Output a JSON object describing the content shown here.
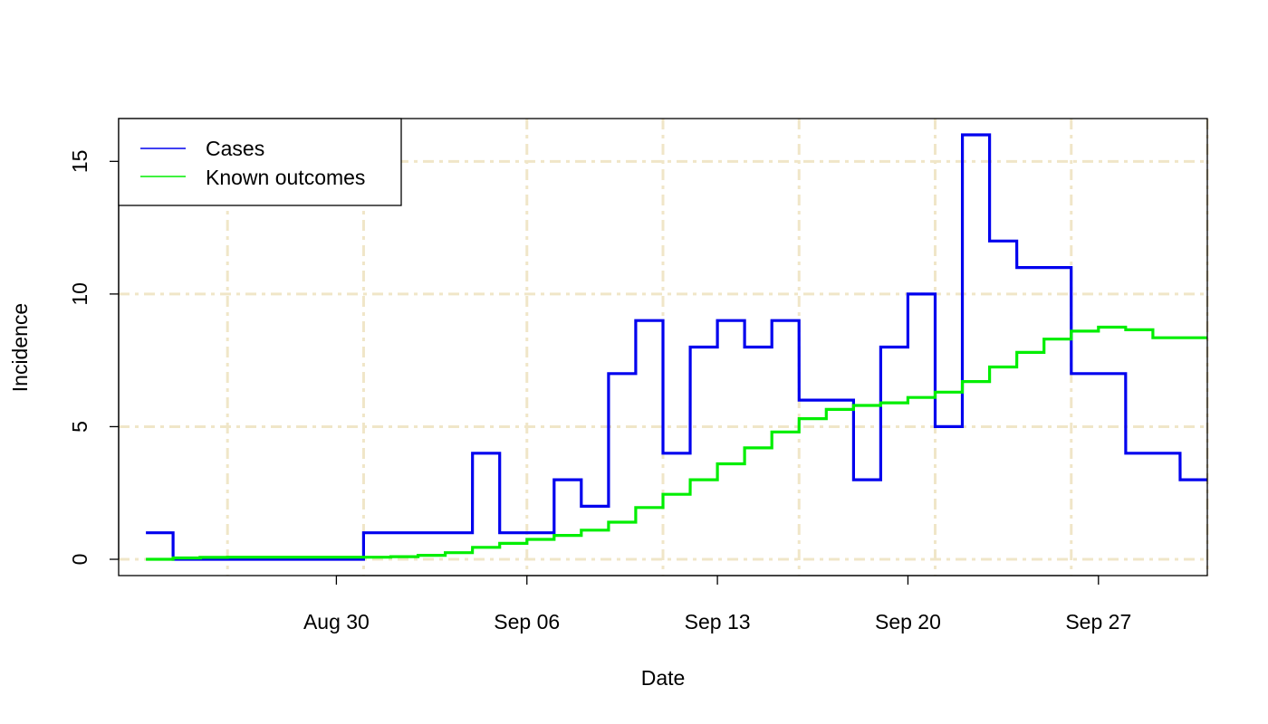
{
  "chart_data": {
    "type": "line",
    "step": true,
    "xlabel": "Date",
    "ylabel": "Incidence",
    "xlim": [
      "2020-08-22",
      "2020-10-01"
    ],
    "ylim": [
      0,
      16.6
    ],
    "x_ticks": [
      {
        "date": "2020-08-30",
        "label": "Aug 30"
      },
      {
        "date": "2020-09-06",
        "label": "Sep 06"
      },
      {
        "date": "2020-09-13",
        "label": "Sep 13"
      },
      {
        "date": "2020-09-20",
        "label": "Sep 20"
      },
      {
        "date": "2020-09-27",
        "label": "Sep 27"
      }
    ],
    "y_ticks": [
      0,
      5,
      10,
      15
    ],
    "grid": true,
    "grid_color": "#f0e6c8",
    "vertical_grid_dates": [
      "2020-08-26",
      "2020-08-31",
      "2020-09-06",
      "2020-09-11",
      "2020-09-16",
      "2020-09-21",
      "2020-09-26",
      "2020-10-01"
    ],
    "legend_position": "top-left",
    "x": [
      "2020-08-23",
      "2020-08-24",
      "2020-08-25",
      "2020-08-26",
      "2020-08-27",
      "2020-08-28",
      "2020-08-29",
      "2020-08-30",
      "2020-08-31",
      "2020-09-01",
      "2020-09-02",
      "2020-09-03",
      "2020-09-04",
      "2020-09-05",
      "2020-09-06",
      "2020-09-07",
      "2020-09-08",
      "2020-09-09",
      "2020-09-10",
      "2020-09-11",
      "2020-09-12",
      "2020-09-13",
      "2020-09-14",
      "2020-09-15",
      "2020-09-16",
      "2020-09-17",
      "2020-09-18",
      "2020-09-19",
      "2020-09-20",
      "2020-09-21",
      "2020-09-22",
      "2020-09-23",
      "2020-09-24",
      "2020-09-25",
      "2020-09-26",
      "2020-09-27",
      "2020-09-28",
      "2020-09-29",
      "2020-09-30"
    ],
    "series": [
      {
        "name": "Cases",
        "color": "#0000ee",
        "values": [
          1,
          0,
          0,
          0,
          0,
          0,
          0,
          0,
          1,
          1,
          1,
          1,
          4,
          1,
          1,
          3,
          2,
          7,
          9,
          4,
          8,
          9,
          8,
          9,
          6,
          6,
          3,
          8,
          10,
          5,
          16,
          12,
          11,
          11,
          7,
          7,
          4,
          4,
          3
        ]
      },
      {
        "name": "Known outcomes",
        "color": "#00ee00",
        "values": [
          0,
          0.05,
          0.07,
          0.08,
          0.08,
          0.08,
          0.08,
          0.08,
          0.08,
          0.1,
          0.15,
          0.25,
          0.45,
          0.6,
          0.75,
          0.9,
          1.1,
          1.4,
          1.95,
          2.45,
          3,
          3.6,
          4.2,
          4.8,
          5.3,
          5.65,
          5.8,
          5.9,
          6.1,
          6.3,
          6.7,
          7.25,
          7.8,
          8.3,
          8.6,
          8.75,
          8.65,
          8.35,
          8.35
        ]
      }
    ]
  }
}
